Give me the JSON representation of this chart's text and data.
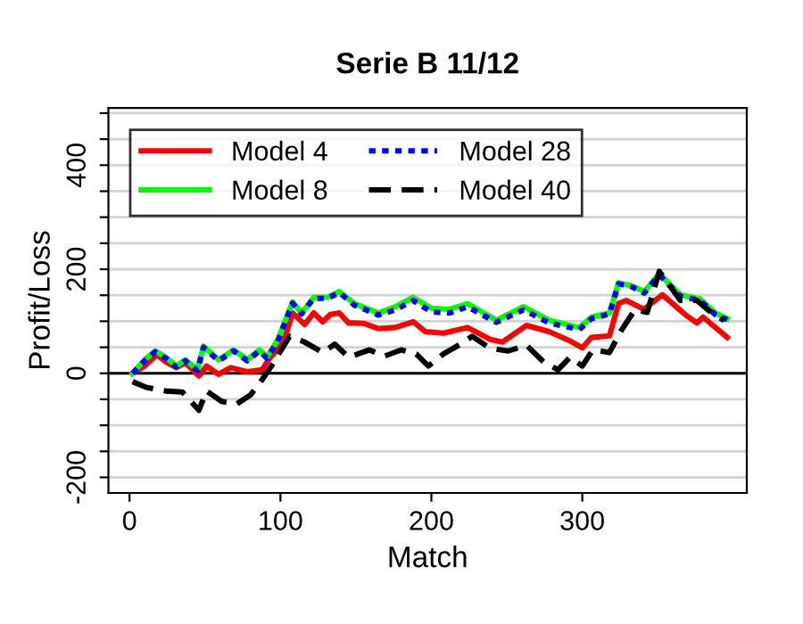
{
  "chart_data": {
    "type": "line",
    "title": "Serie B 11/12",
    "xlabel": "Match",
    "ylabel": "Profit/Loss",
    "xlim": [
      -14,
      409
    ],
    "ylim": [
      -230,
      510
    ],
    "xticks": [
      0,
      100,
      200,
      300
    ],
    "yticks": [
      {
        "value": -200,
        "label": "-200"
      },
      {
        "value": -150,
        "label": null
      },
      {
        "value": -100,
        "label": null
      },
      {
        "value": -50,
        "label": null
      },
      {
        "value": 0,
        "label": "0"
      },
      {
        "value": 50,
        "label": null
      },
      {
        "value": 100,
        "label": null
      },
      {
        "value": 150,
        "label": null
      },
      {
        "value": 200,
        "label": "200"
      },
      {
        "value": 250,
        "label": null
      },
      {
        "value": 300,
        "label": null
      },
      {
        "value": 350,
        "label": null
      },
      {
        "value": 400,
        "label": "400"
      },
      {
        "value": 450,
        "label": null
      },
      {
        "value": 500,
        "label": null
      }
    ],
    "grid": "y",
    "legend": "top left",
    "marker": "none",
    "ref_lines": [
      {
        "axis": "y",
        "value": 0,
        "color": "#000000",
        "line_style": "solid"
      }
    ],
    "series": [
      {
        "name": "Model 4",
        "color": "#ff0000",
        "line_style": "solid",
        "x": [
          2,
          10,
          18,
          24,
          31,
          37,
          46,
          51,
          59,
          67,
          78,
          88,
          92,
          102,
          108,
          116,
          122,
          128,
          133,
          139,
          145,
          155,
          165,
          176,
          188,
          196,
          208,
          224,
          239,
          247,
          263,
          278,
          292,
          300,
          306,
          318,
          324,
          329,
          341,
          353,
          369,
          376,
          380,
          396
        ],
        "values": [
          0,
          14,
          36,
          22,
          11,
          20,
          -5,
          14,
          -2,
          11,
          3,
          7,
          26,
          60,
          116,
          94,
          116,
          99,
          113,
          116,
          97,
          96,
          86,
          88,
          99,
          80,
          77,
          88,
          65,
          60,
          92,
          80,
          62,
          49,
          69,
          72,
          134,
          140,
          123,
          151,
          111,
          97,
          108,
          69
        ]
      },
      {
        "name": "Model 8",
        "color": "#00ff00",
        "line_style": "solid",
        "x": [
          2,
          10,
          17,
          24,
          31,
          37,
          45,
          49,
          59,
          69,
          78,
          86,
          91,
          98,
          108,
          114,
          122,
          131,
          139,
          149,
          165,
          176,
          188,
          200,
          212,
          224,
          243,
          261,
          278,
          298,
          306,
          318,
          324,
          333,
          341,
          351,
          365,
          378,
          388,
          396
        ],
        "values": [
          0,
          26,
          43,
          31,
          14,
          26,
          7,
          52,
          26,
          45,
          26,
          45,
          31,
          63,
          137,
          116,
          146,
          146,
          157,
          134,
          116,
          128,
          146,
          125,
          123,
          134,
          102,
          128,
          102,
          88,
          108,
          116,
          174,
          168,
          157,
          191,
          151,
          143,
          116,
          105
        ]
      },
      {
        "name": "Model 28",
        "color": "#0000ff",
        "line_style": "dotted",
        "x": [
          2,
          10,
          17,
          24,
          31,
          37,
          45,
          49,
          59,
          69,
          78,
          86,
          91,
          98,
          108,
          114,
          122,
          131,
          139,
          149,
          165,
          176,
          188,
          200,
          212,
          224,
          243,
          261,
          278,
          298,
          306,
          318,
          324,
          333,
          341,
          351,
          365,
          378,
          388,
          396
        ],
        "values": [
          0,
          24,
          41,
          29,
          12,
          24,
          5,
          50,
          24,
          43,
          24,
          43,
          29,
          60,
          135,
          114,
          144,
          144,
          155,
          131,
          112,
          122,
          140,
          118,
          116,
          128,
          98,
          122,
          97,
          84,
          105,
          114,
          172,
          166,
          154,
          189,
          148,
          140,
          113,
          103
        ]
      },
      {
        "name": "Model 40",
        "color": "#000000",
        "line_style": "dashed",
        "x": [
          2,
          11,
          24,
          35,
          46,
          51,
          61,
          71,
          80,
          86,
          94,
          106,
          116,
          128,
          136,
          145,
          159,
          169,
          180,
          190,
          198,
          208,
          218,
          227,
          239,
          251,
          263,
          275,
          284,
          292,
          300,
          307,
          318,
          326,
          335,
          343,
          351,
          365,
          376,
          388,
          394
        ],
        "values": [
          -16,
          -27,
          -34,
          -36,
          -71,
          -34,
          -54,
          -59,
          -42,
          -20,
          14,
          71,
          60,
          40,
          56,
          31,
          45,
          33,
          45,
          37,
          14,
          37,
          54,
          71,
          48,
          43,
          54,
          20,
          7,
          31,
          14,
          45,
          40,
          83,
          123,
          117,
          196,
          140,
          140,
          111,
          102
        ]
      }
    ]
  }
}
